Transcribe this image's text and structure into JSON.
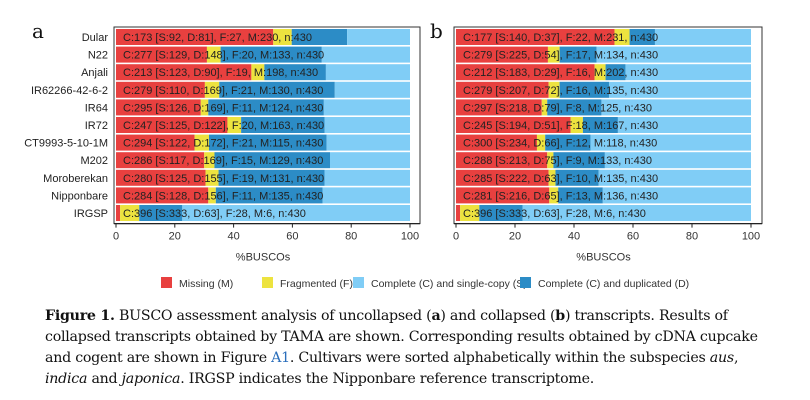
{
  "chart_data": [
    {
      "type": "bar",
      "orientation": "horizontal-stacked",
      "panel_label": "a",
      "xlabel": "%BUSCOs",
      "xlim": [
        0,
        100
      ],
      "xticks": [
        "0",
        "20",
        "40",
        "60",
        "80",
        "100"
      ],
      "categories": [
        "Dular",
        "N22",
        "Anjali",
        "IR62266-42-6-2",
        "IR64",
        "IR72",
        "CT9993-5-10-1M",
        "M202",
        "Moroberekan",
        "Nipponbare",
        "IRGSP"
      ],
      "records": [
        {
          "C": 173,
          "S": 92,
          "D": 81,
          "F": 27,
          "M": 230,
          "n": 430,
          "label": "C:173 [S:92, D:81], F:27, M:230, n:430"
        },
        {
          "C": 277,
          "S": 129,
          "D": 148,
          "F": 20,
          "M": 133,
          "n": 430,
          "label": "C:277 [S:129, D:148], F:20, M:133, n:430"
        },
        {
          "C": 213,
          "S": 123,
          "D": 90,
          "F": 19,
          "M": 198,
          "n": 430,
          "label": "C:213 [S:123, D:90], F:19, M:198, n:430"
        },
        {
          "C": 279,
          "S": 110,
          "D": 169,
          "F": 21,
          "M": 130,
          "n": 430,
          "label": "C:279 [S:110, D:169], F:21, M:130, n:430"
        },
        {
          "C": 295,
          "S": 126,
          "D": 169,
          "F": 11,
          "M": 124,
          "n": 430,
          "label": "C:295 [S:126, D:169], F:11, M:124, n:430"
        },
        {
          "C": 247,
          "S": 125,
          "D": 122,
          "F": 20,
          "M": 163,
          "n": 430,
          "label": "C:247 [S:125, D:122], F:20, M:163, n:430"
        },
        {
          "C": 294,
          "S": 122,
          "D": 172,
          "F": 21,
          "M": 115,
          "n": 430,
          "label": "C:294 [S:122, D:172], F:21, M:115, n:430"
        },
        {
          "C": 286,
          "S": 117,
          "D": 169,
          "F": 15,
          "M": 129,
          "n": 430,
          "label": "C:286 [S:117, D:169], F:15, M:129, n:430"
        },
        {
          "C": 280,
          "S": 125,
          "D": 155,
          "F": 19,
          "M": 131,
          "n": 430,
          "label": "C:280 [S:125, D:155], F:19, M:131, n:430"
        },
        {
          "C": 284,
          "S": 128,
          "D": 156,
          "F": 11,
          "M": 135,
          "n": 430,
          "label": "C:284 [S:128, D:156], F:11, M:135, n:430"
        },
        {
          "C": 396,
          "S": 333,
          "D": 63,
          "F": 28,
          "M": 6,
          "n": 430,
          "label": "C:396 [S:333, D:63], F:28, M:6, n:430"
        }
      ]
    },
    {
      "type": "bar",
      "orientation": "horizontal-stacked",
      "panel_label": "b",
      "xlabel": "%BUSCOs",
      "xlim": [
        0,
        100
      ],
      "xticks": [
        "0",
        "20",
        "40",
        "60",
        "80",
        "100"
      ],
      "categories": [
        "Dular",
        "N22",
        "Anjali",
        "IR62266-42-6-2",
        "IR64",
        "IR72",
        "CT9993-5-10-1M",
        "M202",
        "Moroberekan",
        "Nipponbare",
        "IRGSP"
      ],
      "records": [
        {
          "C": 177,
          "S": 140,
          "D": 37,
          "F": 22,
          "M": 231,
          "n": 430,
          "label": "C:177 [S:140, D:37], F:22, M:231, n:430"
        },
        {
          "C": 279,
          "S": 225,
          "D": 54,
          "F": 17,
          "M": 134,
          "n": 430,
          "label": "C:279 [S:225, D:54], F:17, M:134, n:430"
        },
        {
          "C": 212,
          "S": 183,
          "D": 29,
          "F": 16,
          "M": 202,
          "n": 430,
          "label": "C:212 [S:183, D:29], F:16, M:202, n:430"
        },
        {
          "C": 279,
          "S": 207,
          "D": 72,
          "F": 16,
          "M": 135,
          "n": 430,
          "label": "C:279 [S:207, D:72], F:16, M:135, n:430"
        },
        {
          "C": 297,
          "S": 218,
          "D": 79,
          "F": 8,
          "M": 125,
          "n": 430,
          "label": "C:297 [S:218, D:79], F:8, M:125, n:430"
        },
        {
          "C": 245,
          "S": 194,
          "D": 51,
          "F": 18,
          "M": 167,
          "n": 430,
          "label": "C:245 [S:194, D:51], F:18, M:167, n:430"
        },
        {
          "C": 300,
          "S": 234,
          "D": 66,
          "F": 12,
          "M": 118,
          "n": 430,
          "label": "C:300 [S:234, D:66], F:12, M:118, n:430"
        },
        {
          "C": 288,
          "S": 213,
          "D": 75,
          "F": 9,
          "M": 133,
          "n": 430,
          "label": "C:288 [S:213, D:75], F:9, M:133, n:430"
        },
        {
          "C": 285,
          "S": 222,
          "D": 63,
          "F": 10,
          "M": 135,
          "n": 430,
          "label": "C:285 [S:222, D:63], F:10, M:135, n:430"
        },
        {
          "C": 281,
          "S": 216,
          "D": 65,
          "F": 13,
          "M": 136,
          "n": 430,
          "label": "C:281 [S:216, D:65], F:13, M:136, n:430"
        },
        {
          "C": 396,
          "S": 333,
          "D": 63,
          "F": 28,
          "M": 6,
          "n": 430,
          "label": "C:396 [S:333, D:63], F:28, M:6, n:430"
        }
      ]
    }
  ],
  "legend": {
    "placement": "bottom",
    "items": [
      {
        "key": "M",
        "label": "Missing (M)",
        "color": "#e8403f"
      },
      {
        "key": "F",
        "label": "Fragmented (F)",
        "color": "#ede33f"
      },
      {
        "key": "S",
        "label": "Complete (C) and single-copy (S)",
        "color": "#80cdf6"
      },
      {
        "key": "D",
        "label": "Complete (C) and duplicated (D)",
        "color": "#2c8cc6"
      }
    ]
  },
  "caption": {
    "lines": [
      [
        {
          "t": "Figure 1.",
          "s": "b"
        },
        {
          "t": "  BUSCO assessment analysis of uncollapsed ("
        },
        {
          "t": "a",
          "s": "b"
        },
        {
          "t": ") and collapsed ("
        },
        {
          "t": "b",
          "s": "b"
        },
        {
          "t": ") transcripts.  Results of"
        }
      ],
      [
        {
          "t": "collapsed transcripts obtained by TAMA are shown. Corresponding results obtained by cDNA cupcake"
        }
      ],
      [
        {
          "t": "and cogent are shown in Figure "
        },
        {
          "t": "A1",
          "s": "link"
        },
        {
          "t": ". Cultivars were sorted alphabetically within the subspecies "
        },
        {
          "t": "aus",
          "s": "i"
        },
        {
          "t": ","
        }
      ],
      [
        {
          "t": "indica",
          "s": "i"
        },
        {
          "t": " and "
        },
        {
          "t": "japonica",
          "s": "i"
        },
        {
          "t": ". IRGSP indicates the Nipponbare reference transcriptome."
        }
      ]
    ]
  }
}
